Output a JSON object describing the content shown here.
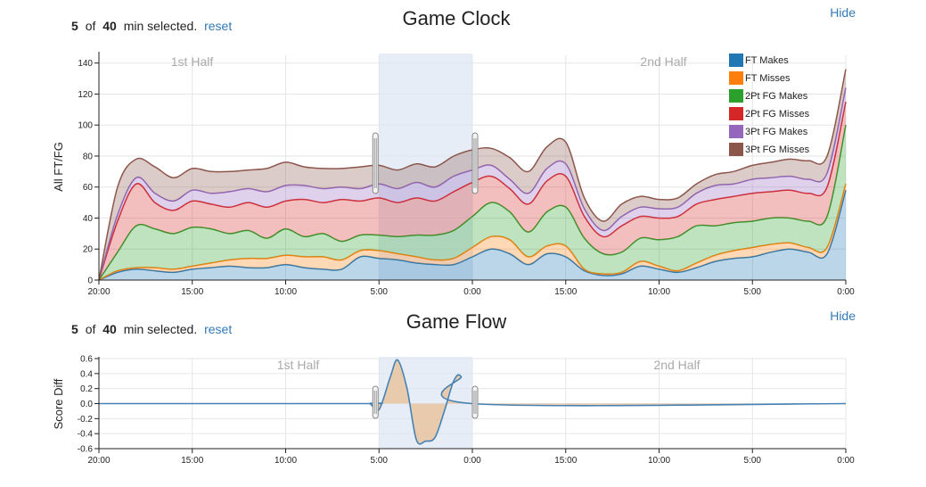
{
  "top": {
    "selection": {
      "count": "5",
      "of": "of",
      "total": "40",
      "suffix": "min selected.",
      "reset": "reset"
    },
    "hide": "Hide",
    "halves": [
      "1st Half",
      "2nd Half"
    ],
    "chart_data": {
      "type": "area",
      "title": "Game Clock",
      "ylabel": "All FT/FG",
      "xlabel": "",
      "ylim": [
        0,
        145
      ],
      "yticks": [
        0,
        20,
        40,
        60,
        80,
        100,
        120,
        140
      ],
      "x": [
        0,
        1,
        2,
        3,
        4,
        5,
        6,
        7,
        8,
        9,
        10,
        11,
        12,
        13,
        14,
        15,
        16,
        17,
        18,
        19,
        20,
        21,
        22,
        23,
        24,
        25,
        26,
        27,
        28,
        29,
        30,
        31,
        32,
        33,
        34,
        35,
        36,
        37,
        38,
        39,
        40
      ],
      "x_tick_values": [
        0,
        5,
        10,
        15,
        20,
        25,
        30,
        35,
        40
      ],
      "x_tick_labels": [
        "20:00",
        "15:00",
        "10:00",
        "5:00",
        "0:00",
        "15:00",
        "10:00",
        "5:00",
        "0:00"
      ],
      "selection_range": [
        15,
        20
      ],
      "grid": true,
      "legend_position": "top-right",
      "series": [
        {
          "name": "FT Makes",
          "color": "#1f77b4",
          "values": [
            0,
            5,
            7,
            6,
            5,
            7,
            8,
            9,
            8,
            8,
            10,
            8,
            7,
            7,
            15,
            14,
            13,
            11,
            10,
            10,
            15,
            20,
            17,
            10,
            17,
            15,
            6,
            3,
            4,
            9,
            7,
            5,
            8,
            12,
            14,
            15,
            18,
            20,
            18,
            17,
            58
          ]
        },
        {
          "name": "FT Misses",
          "color": "#ff7f0e",
          "values": [
            0,
            1,
            1,
            2,
            2,
            2,
            3,
            4,
            6,
            6,
            6,
            7,
            8,
            6,
            4,
            5,
            4,
            4,
            3,
            4,
            6,
            8,
            9,
            5,
            5,
            7,
            1,
            1,
            1,
            3,
            2,
            1,
            3,
            4,
            5,
            6,
            5,
            4,
            3,
            4,
            4
          ]
        },
        {
          "name": "2Pt FG Makes",
          "color": "#2ca02c",
          "values": [
            0,
            12,
            27,
            25,
            23,
            25,
            22,
            17,
            18,
            13,
            17,
            13,
            15,
            12,
            10,
            10,
            11,
            14,
            16,
            18,
            20,
            22,
            18,
            16,
            22,
            25,
            20,
            13,
            13,
            15,
            17,
            22,
            24,
            19,
            18,
            17,
            17,
            16,
            17,
            20,
            38
          ]
        },
        {
          "name": "2Pt FG Misses",
          "color": "#d62728",
          "values": [
            0,
            20,
            27,
            17,
            15,
            17,
            16,
            17,
            18,
            20,
            18,
            24,
            20,
            27,
            22,
            24,
            22,
            24,
            22,
            25,
            22,
            17,
            15,
            18,
            20,
            20,
            14,
            11,
            17,
            14,
            14,
            13,
            14,
            17,
            17,
            18,
            17,
            18,
            18,
            19,
            15
          ]
        },
        {
          "name": "3Pt FG Makes",
          "color": "#9467bd",
          "values": [
            0,
            4,
            4,
            6,
            6,
            7,
            7,
            10,
            9,
            10,
            10,
            9,
            9,
            8,
            8,
            9,
            9,
            10,
            9,
            10,
            8,
            7,
            6,
            7,
            8,
            8,
            5,
            4,
            6,
            6,
            6,
            6,
            7,
            9,
            8,
            9,
            9,
            9,
            9,
            9,
            9
          ]
        },
        {
          "name": "3Pt FG Misses",
          "color": "#8c564b",
          "values": [
            0,
            18,
            12,
            17,
            15,
            14,
            14,
            13,
            12,
            15,
            15,
            12,
            13,
            12,
            14,
            12,
            12,
            12,
            13,
            13,
            13,
            11,
            14,
            14,
            14,
            14,
            7,
            6,
            8,
            7,
            6,
            6,
            6,
            7,
            8,
            9,
            10,
            11,
            12,
            11,
            12
          ]
        }
      ]
    }
  },
  "bottom": {
    "selection": {
      "count": "5",
      "of": "of",
      "total": "40",
      "suffix": "min selected.",
      "reset": "reset"
    },
    "hide": "Hide",
    "halves": [
      "1st Half",
      "2nd Half"
    ],
    "chart_data": {
      "type": "line",
      "title": "Game Flow",
      "ylabel": "Score Diff",
      "xlabel": "",
      "ylim": [
        -0.6,
        0.6
      ],
      "yticks": [
        -0.6,
        -0.4,
        -0.2,
        0.0,
        0.2,
        0.4,
        0.6
      ],
      "ytick_labels": [
        "-0.6",
        "-0.4",
        "-0.2",
        "0.0",
        "0.2",
        "0.4",
        "0.6"
      ],
      "x_tick_values": [
        0,
        5,
        10,
        15,
        20,
        25,
        30,
        35,
        40
      ],
      "x_tick_labels": [
        "20:00",
        "15:00",
        "10:00",
        "5:00",
        "0:00",
        "15:00",
        "10:00",
        "5:00",
        "0:00"
      ],
      "selection_range": [
        15,
        20
      ],
      "grid": true,
      "line_color": "#4682b4",
      "fill_color": "#e8c09a",
      "points": [
        [
          0,
          0
        ],
        [
          14,
          0
        ],
        [
          14.5,
          0
        ],
        [
          15,
          -0.08
        ],
        [
          15.6,
          0.35
        ],
        [
          16,
          0.58
        ],
        [
          16.5,
          0.2
        ],
        [
          17,
          -0.48
        ],
        [
          17.5,
          -0.5
        ],
        [
          18,
          -0.45
        ],
        [
          18.5,
          -0.1
        ],
        [
          19,
          0.3
        ],
        [
          19.4,
          0.36
        ],
        [
          20,
          0.0
        ],
        [
          40,
          0
        ]
      ]
    }
  }
}
